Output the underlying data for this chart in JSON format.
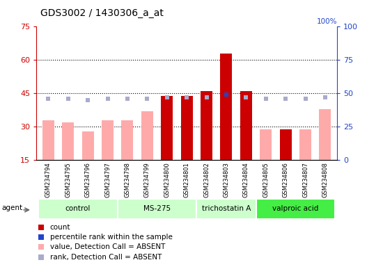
{
  "title": "GDS3002 / 1430306_a_at",
  "samples": [
    "GSM234794",
    "GSM234795",
    "GSM234796",
    "GSM234797",
    "GSM234798",
    "GSM234799",
    "GSM234800",
    "GSM234801",
    "GSM234802",
    "GSM234803",
    "GSM234804",
    "GSM234805",
    "GSM234806",
    "GSM234807",
    "GSM234808"
  ],
  "count_values": [
    null,
    null,
    null,
    null,
    null,
    null,
    44,
    44,
    46,
    63,
    46,
    null,
    29,
    null,
    null
  ],
  "count_absent": [
    33,
    32,
    28,
    33,
    33,
    37,
    null,
    null,
    null,
    null,
    null,
    29,
    null,
    29,
    38
  ],
  "rank_values": [
    null,
    null,
    null,
    null,
    null,
    null,
    null,
    null,
    null,
    49,
    null,
    null,
    null,
    null,
    null
  ],
  "rank_absent": [
    46,
    46,
    45,
    46,
    46,
    46,
    47,
    47,
    47,
    null,
    47,
    46,
    46,
    46,
    47
  ],
  "groups": [
    {
      "label": "control",
      "start": 0,
      "end": 3,
      "color": "#ccffcc"
    },
    {
      "label": "MS-275",
      "start": 4,
      "end": 7,
      "color": "#ccffcc"
    },
    {
      "label": "trichostatin A",
      "start": 8,
      "end": 10,
      "color": "#ccffcc"
    },
    {
      "label": "valproic acid",
      "start": 11,
      "end": 14,
      "color": "#44ee44"
    }
  ],
  "ylim_left": [
    15,
    75
  ],
  "ylim_right": [
    0,
    100
  ],
  "yticks_left": [
    15,
    30,
    45,
    60,
    75
  ],
  "yticks_right": [
    0,
    25,
    50,
    75,
    100
  ],
  "bar_width": 0.6,
  "count_color": "#cc0000",
  "count_absent_color": "#ffaaaa",
  "rank_color": "#2244cc",
  "rank_absent_color": "#aaaacc",
  "left_axis_color": "#cc0000",
  "right_axis_color": "#2244cc",
  "grid_lines": [
    30,
    45,
    60
  ],
  "legend_items": [
    {
      "color": "#cc0000",
      "label": "count"
    },
    {
      "color": "#2244cc",
      "label": "percentile rank within the sample"
    },
    {
      "color": "#ffaaaa",
      "label": "value, Detection Call = ABSENT"
    },
    {
      "color": "#aaaacc",
      "label": "rank, Detection Call = ABSENT"
    }
  ]
}
